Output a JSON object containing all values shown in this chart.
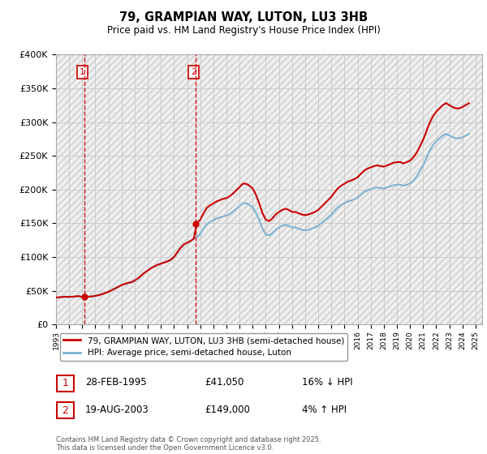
{
  "title": "79, GRAMPIAN WAY, LUTON, LU3 3HB",
  "subtitle": "Price paid vs. HM Land Registry's House Price Index (HPI)",
  "ylim": [
    0,
    400000
  ],
  "xlim_start": 1993,
  "xlim_end": 2025.5,
  "transaction1": {
    "date_num": 1995.15,
    "price": 41050,
    "label": "1"
  },
  "transaction2": {
    "date_num": 2003.63,
    "price": 149000,
    "label": "2"
  },
  "legend_line1": "79, GRAMPIAN WAY, LUTON, LU3 3HB (semi-detached house)",
  "legend_line2": "HPI: Average price, semi-detached house, Luton",
  "note1_label": "1",
  "note1_date": "28-FEB-1995",
  "note1_price": "£41,050",
  "note1_hpi": "16% ↓ HPI",
  "note2_label": "2",
  "note2_date": "19-AUG-2003",
  "note2_price": "£149,000",
  "note2_hpi": "4% ↑ HPI",
  "footer": "Contains HM Land Registry data © Crown copyright and database right 2025.\nThis data is licensed under the Open Government Licence v3.0.",
  "line_color_red": "#cc0000",
  "line_color_blue": "#7fb3d3",
  "vline_color": "#cc0000",
  "grid_color": "#cccccc",
  "hpi_data": {
    "years": [
      1993.0,
      1993.25,
      1993.5,
      1993.75,
      1994.0,
      1994.25,
      1994.5,
      1994.75,
      1995.0,
      1995.25,
      1995.5,
      1995.75,
      1996.0,
      1996.25,
      1996.5,
      1996.75,
      1997.0,
      1997.25,
      1997.5,
      1997.75,
      1998.0,
      1998.25,
      1998.5,
      1998.75,
      1999.0,
      1999.25,
      1999.5,
      1999.75,
      2000.0,
      2000.25,
      2000.5,
      2000.75,
      2001.0,
      2001.25,
      2001.5,
      2001.75,
      2002.0,
      2002.25,
      2002.5,
      2002.75,
      2003.0,
      2003.25,
      2003.5,
      2003.75,
      2004.0,
      2004.25,
      2004.5,
      2004.75,
      2005.0,
      2005.25,
      2005.5,
      2005.75,
      2006.0,
      2006.25,
      2006.5,
      2006.75,
      2007.0,
      2007.25,
      2007.5,
      2007.75,
      2008.0,
      2008.25,
      2008.5,
      2008.75,
      2009.0,
      2009.25,
      2009.5,
      2009.75,
      2010.0,
      2010.25,
      2010.5,
      2010.75,
      2011.0,
      2011.25,
      2011.5,
      2011.75,
      2012.0,
      2012.25,
      2012.5,
      2012.75,
      2013.0,
      2013.25,
      2013.5,
      2013.75,
      2014.0,
      2014.25,
      2014.5,
      2014.75,
      2015.0,
      2015.25,
      2015.5,
      2015.75,
      2016.0,
      2016.25,
      2016.5,
      2016.75,
      2017.0,
      2017.25,
      2017.5,
      2017.75,
      2018.0,
      2018.25,
      2018.5,
      2018.75,
      2019.0,
      2019.25,
      2019.5,
      2019.75,
      2020.0,
      2020.25,
      2020.5,
      2020.75,
      2021.0,
      2021.25,
      2021.5,
      2021.75,
      2022.0,
      2022.25,
      2022.5,
      2022.75,
      2023.0,
      2023.25,
      2023.5,
      2023.75,
      2024.0,
      2024.25,
      2024.5
    ],
    "prices": [
      48000,
      48500,
      49000,
      49500,
      49000,
      49500,
      50000,
      50500,
      49000,
      49200,
      49500,
      50000,
      51000,
      52000,
      54000,
      56000,
      58000,
      61000,
      64000,
      67000,
      70000,
      72000,
      74000,
      75000,
      78000,
      82000,
      87000,
      92000,
      96000,
      100000,
      103000,
      106000,
      108000,
      110000,
      112000,
      115000,
      120000,
      128000,
      136000,
      142000,
      145000,
      148000,
      152000,
      155000,
      160000,
      170000,
      178000,
      182000,
      185000,
      188000,
      190000,
      192000,
      193000,
      196000,
      200000,
      205000,
      210000,
      215000,
      215000,
      212000,
      208000,
      198000,
      185000,
      170000,
      160000,
      158000,
      162000,
      168000,
      172000,
      175000,
      177000,
      175000,
      172000,
      172000,
      170000,
      168000,
      167000,
      168000,
      170000,
      172000,
      175000,
      180000,
      185000,
      190000,
      195000,
      202000,
      208000,
      212000,
      215000,
      218000,
      220000,
      222000,
      225000,
      230000,
      235000,
      238000,
      240000,
      242000,
      243000,
      242000,
      241000,
      243000,
      245000,
      247000,
      248000,
      248000,
      246000,
      248000,
      250000,
      255000,
      262000,
      272000,
      282000,
      295000,
      308000,
      318000,
      325000,
      330000,
      335000,
      338000,
      335000,
      332000,
      330000,
      330000,
      332000,
      335000,
      338000
    ]
  },
  "price_data": {
    "years": [
      1995.15,
      2003.63
    ],
    "prices": [
      41050,
      149000
    ],
    "hpi_scaled_years": [
      1993.0,
      1993.25,
      1993.5,
      1993.75,
      1994.0,
      1994.25,
      1994.5,
      1994.75,
      1995.0,
      1995.25,
      1995.5,
      1995.75,
      1996.0,
      1996.25,
      1996.5,
      1996.75,
      1997.0,
      1997.25,
      1997.5,
      1997.75,
      1998.0,
      1998.25,
      1998.5,
      1998.75,
      1999.0,
      1999.25,
      1999.5,
      1999.75,
      2000.0,
      2000.25,
      2000.5,
      2000.75,
      2001.0,
      2001.25,
      2001.5,
      2001.75,
      2002.0,
      2002.25,
      2002.5,
      2002.75,
      2003.0,
      2003.25,
      2003.5,
      2003.75,
      2004.0,
      2004.25,
      2004.5,
      2004.75,
      2005.0,
      2005.25,
      2005.5,
      2005.75,
      2006.0,
      2006.25,
      2006.5,
      2006.75,
      2007.0,
      2007.25,
      2007.5,
      2007.75,
      2008.0,
      2008.25,
      2008.5,
      2008.75,
      2009.0,
      2009.25,
      2009.5,
      2009.75,
      2010.0,
      2010.25,
      2010.5,
      2010.75,
      2011.0,
      2011.25,
      2011.5,
      2011.75,
      2012.0,
      2012.25,
      2012.5,
      2012.75,
      2013.0,
      2013.25,
      2013.5,
      2013.75,
      2014.0,
      2014.25,
      2014.5,
      2014.75,
      2015.0,
      2015.25,
      2015.5,
      2015.75,
      2016.0,
      2016.25,
      2016.5,
      2016.75,
      2017.0,
      2017.25,
      2017.5,
      2017.75,
      2018.0,
      2018.25,
      2018.5,
      2018.75,
      2019.0,
      2019.25,
      2019.5,
      2019.75,
      2020.0,
      2020.25,
      2020.5,
      2020.75,
      2021.0,
      2021.25,
      2021.5,
      2021.75,
      2022.0,
      2022.25,
      2022.5,
      2022.75,
      2023.0,
      2023.25,
      2023.5,
      2023.75,
      2024.0,
      2024.25,
      2024.5
    ]
  }
}
